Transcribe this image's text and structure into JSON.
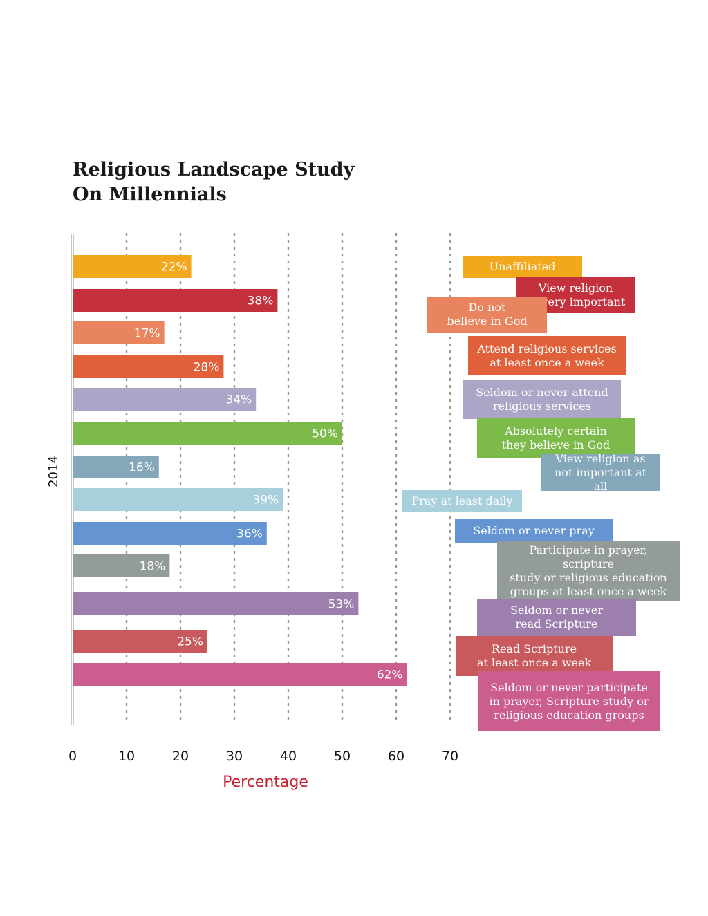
{
  "chart_data": {
    "type": "bar",
    "orientation": "horizontal",
    "title": [
      "Religious Landscape Study",
      "On Millennials"
    ],
    "xlabel": "Percentage",
    "ylabel": "2014",
    "xlim": [
      0,
      70
    ],
    "xticks": [
      0,
      10,
      20,
      30,
      40,
      50,
      60,
      70
    ],
    "grid": true,
    "series": [
      {
        "name": "Unaffiliated",
        "value": 22,
        "label": "22%",
        "color": "#f2a81d"
      },
      {
        "name": "View religion\nas very important",
        "value": 38,
        "label": "38%",
        "color": "#c4303b"
      },
      {
        "name": "Do not\nbelieve in God",
        "value": 17,
        "label": "17%",
        "color": "#e8845e"
      },
      {
        "name": "Attend religious services\nat least once a week",
        "value": 28,
        "label": "28%",
        "color": "#e06039"
      },
      {
        "name": "Seldom or never attend\nreligious services",
        "value": 34,
        "label": "34%",
        "color": "#aba5c8"
      },
      {
        "name": "Absolutely certain\nthey believe in God",
        "value": 50,
        "label": "50%",
        "color": "#7cba4a"
      },
      {
        "name": "View religion as\nnot important at all",
        "value": 16,
        "label": "16%",
        "color": "#85a7ba"
      },
      {
        "name": "Pray at least daily",
        "value": 39,
        "label": "39%",
        "color": "#a8d0dc"
      },
      {
        "name": "Seldom or never pray",
        "value": 36,
        "label": "36%",
        "color": "#6495d2"
      },
      {
        "name": "Participate in prayer, scripture\nstudy or religious education\ngroups at least once a week",
        "value": 18,
        "label": "18%",
        "color": "#939c98"
      },
      {
        "name": "Seldom or never\nread Scripture",
        "value": 53,
        "label": "53%",
        "color": "#9d7fae"
      },
      {
        "name": "Read Scripture\nat least once a week",
        "value": 25,
        "label": "25%",
        "color": "#c85a5e"
      },
      {
        "name": "Seldom or never participate\nin prayer, Scripture study or\nreligious education groups",
        "value": 62,
        "label": "62%",
        "color": "#cc5e8f"
      }
    ]
  }
}
